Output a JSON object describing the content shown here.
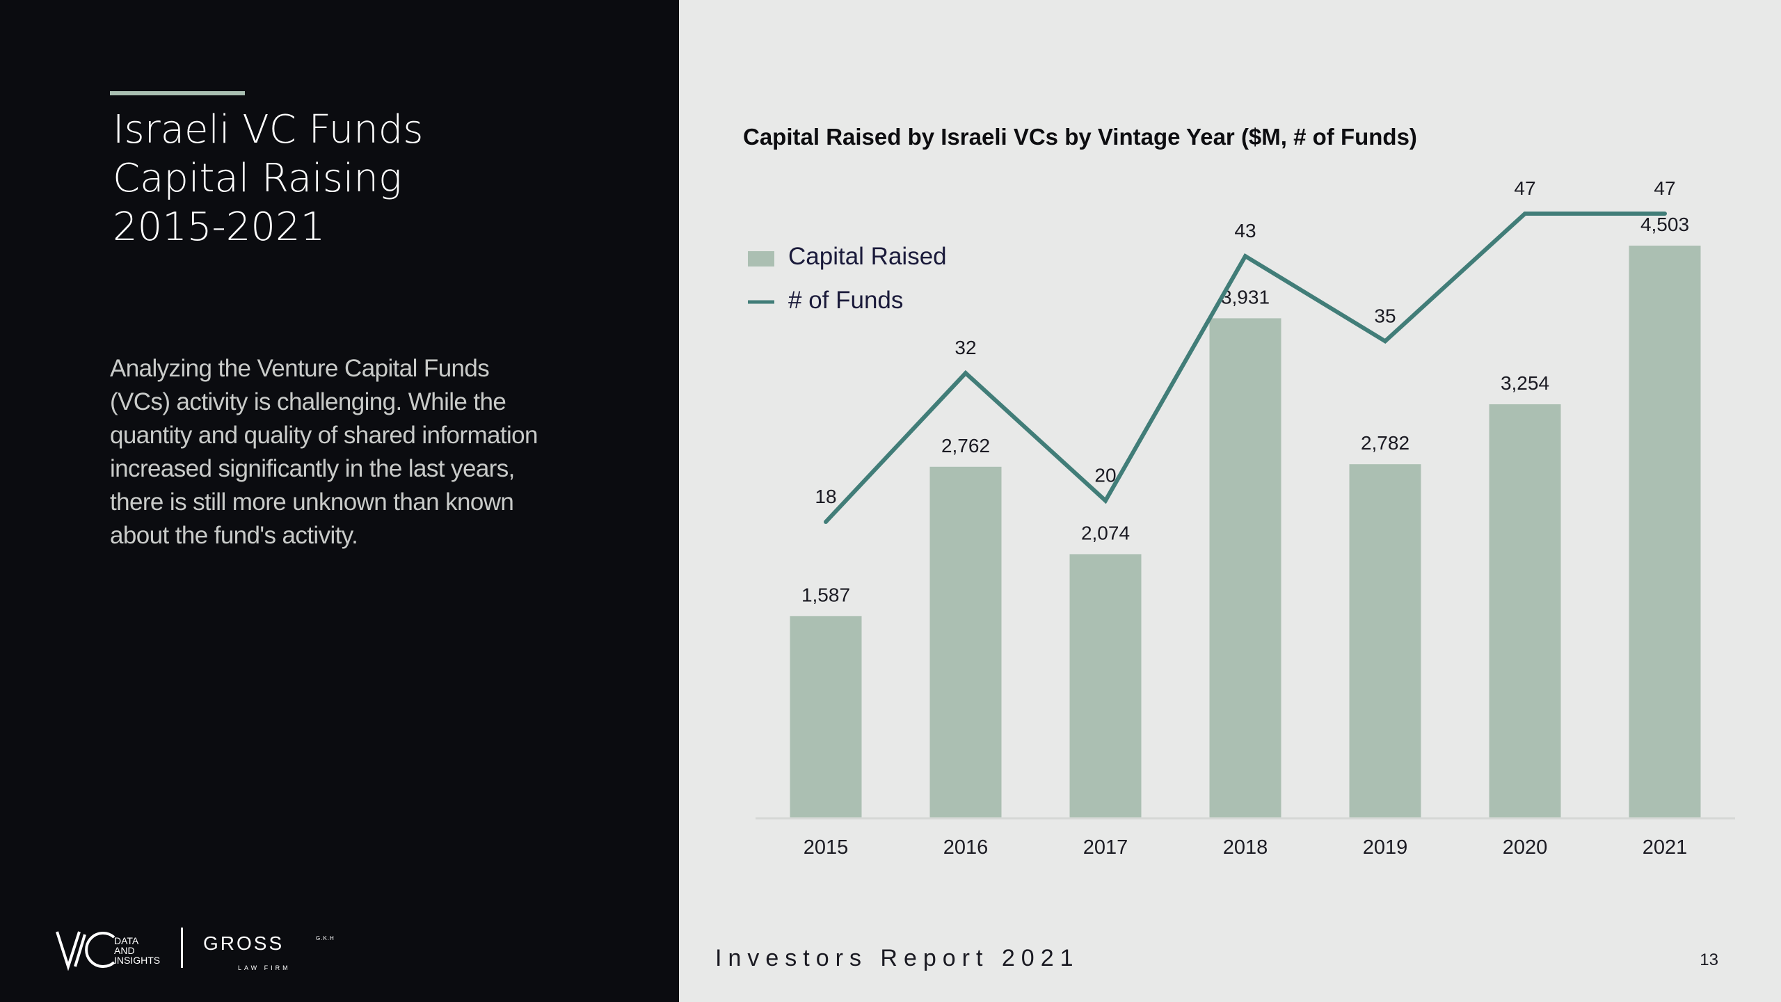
{
  "slide": {
    "title": "Israeli VC Funds\nCapital Raising\n2015-2021",
    "intro": "Analyzing the Venture Capital Funds (VCs) activity is challenging. While the quantity and quality of shared information increased significantly in the last years, there is still more unknown than known about the fund's activity.",
    "footer": "Investors Report 2021",
    "page_number": "13",
    "logos": {
      "vc_sub_line1": "DATA",
      "vc_sub_line2": "AND",
      "vc_sub_line3": "INSIGHTS",
      "gross_name": "GROSS",
      "gross_suffix": "G.K.H",
      "gross_sub": "LAW FIRM"
    }
  },
  "colors": {
    "left_bg": "#0b0c10",
    "right_bg": "#e8e9e8",
    "bar": "#abbfb2",
    "line": "#417d78",
    "text_dark": "#1a1a22"
  },
  "chart_data": {
    "type": "bar",
    "title": "Capital Raised by Israeli VCs by Vintage Year ($M, # of Funds)",
    "categories": [
      "2015",
      "2016",
      "2017",
      "2018",
      "2019",
      "2020",
      "2021"
    ],
    "series": [
      {
        "name": "Capital Raised",
        "type": "bar",
        "values": [
          1587,
          2762,
          2074,
          3931,
          2782,
          3254,
          4503
        ],
        "labels": [
          "1,587",
          "2,762",
          "2,074",
          "3,931",
          "2,782",
          "3,254",
          "4,503"
        ]
      },
      {
        "name": "# of Funds",
        "type": "line",
        "values": [
          18,
          32,
          20,
          43,
          35,
          47,
          47
        ],
        "labels": [
          "18",
          "32",
          "20",
          "43",
          "35",
          "47",
          "47"
        ]
      }
    ],
    "ylim": [
      0,
      4503
    ],
    "y2lim": [
      0,
      47
    ],
    "grid": false,
    "legend": "top-left"
  }
}
